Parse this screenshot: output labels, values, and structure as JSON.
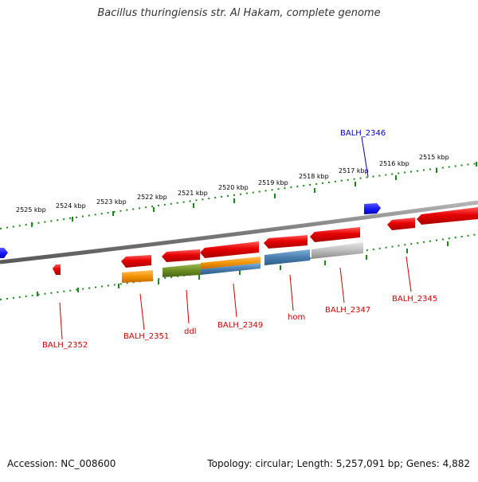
{
  "title": "Bacillus thuringiensis str. Al Hakam, complete genome",
  "footer": {
    "accession": "Accession: NC_008600",
    "summary": "Topology: circular; Length: 5,257,091 bp; Genes: 4,882"
  },
  "colors": {
    "forward_strand": "#1a1aff",
    "reverse_strand": "#e60000",
    "reverse_label": "#cc0000",
    "forward_label": "#0000cc",
    "backbone": "#808080",
    "ruler": "#1a8a1a",
    "orange_feature": "#f39400",
    "green_feature": "#6b8e23",
    "blue_feature": "#4a7fb0",
    "gray_feature": "#bdbdbd"
  },
  "ruler_labels": [
    "2525 kbp",
    "2524 kbp",
    "2523 kbp",
    "2522 kbp",
    "2521 kbp",
    "2520 kbp",
    "2519 kbp",
    "2518 kbp",
    "2517 kbp",
    "2516 kbp",
    "2515 kbp"
  ],
  "gene_labels": {
    "balh_2346": "BALH_2346",
    "balh_2352": "BALH_2352",
    "balh_2351": "BALH_2351",
    "ddl": "ddl",
    "balh_2349": "BALH_2349",
    "hom": "hom",
    "balh_2347": "BALH_2347",
    "balh_2345": "BALH_2345"
  }
}
